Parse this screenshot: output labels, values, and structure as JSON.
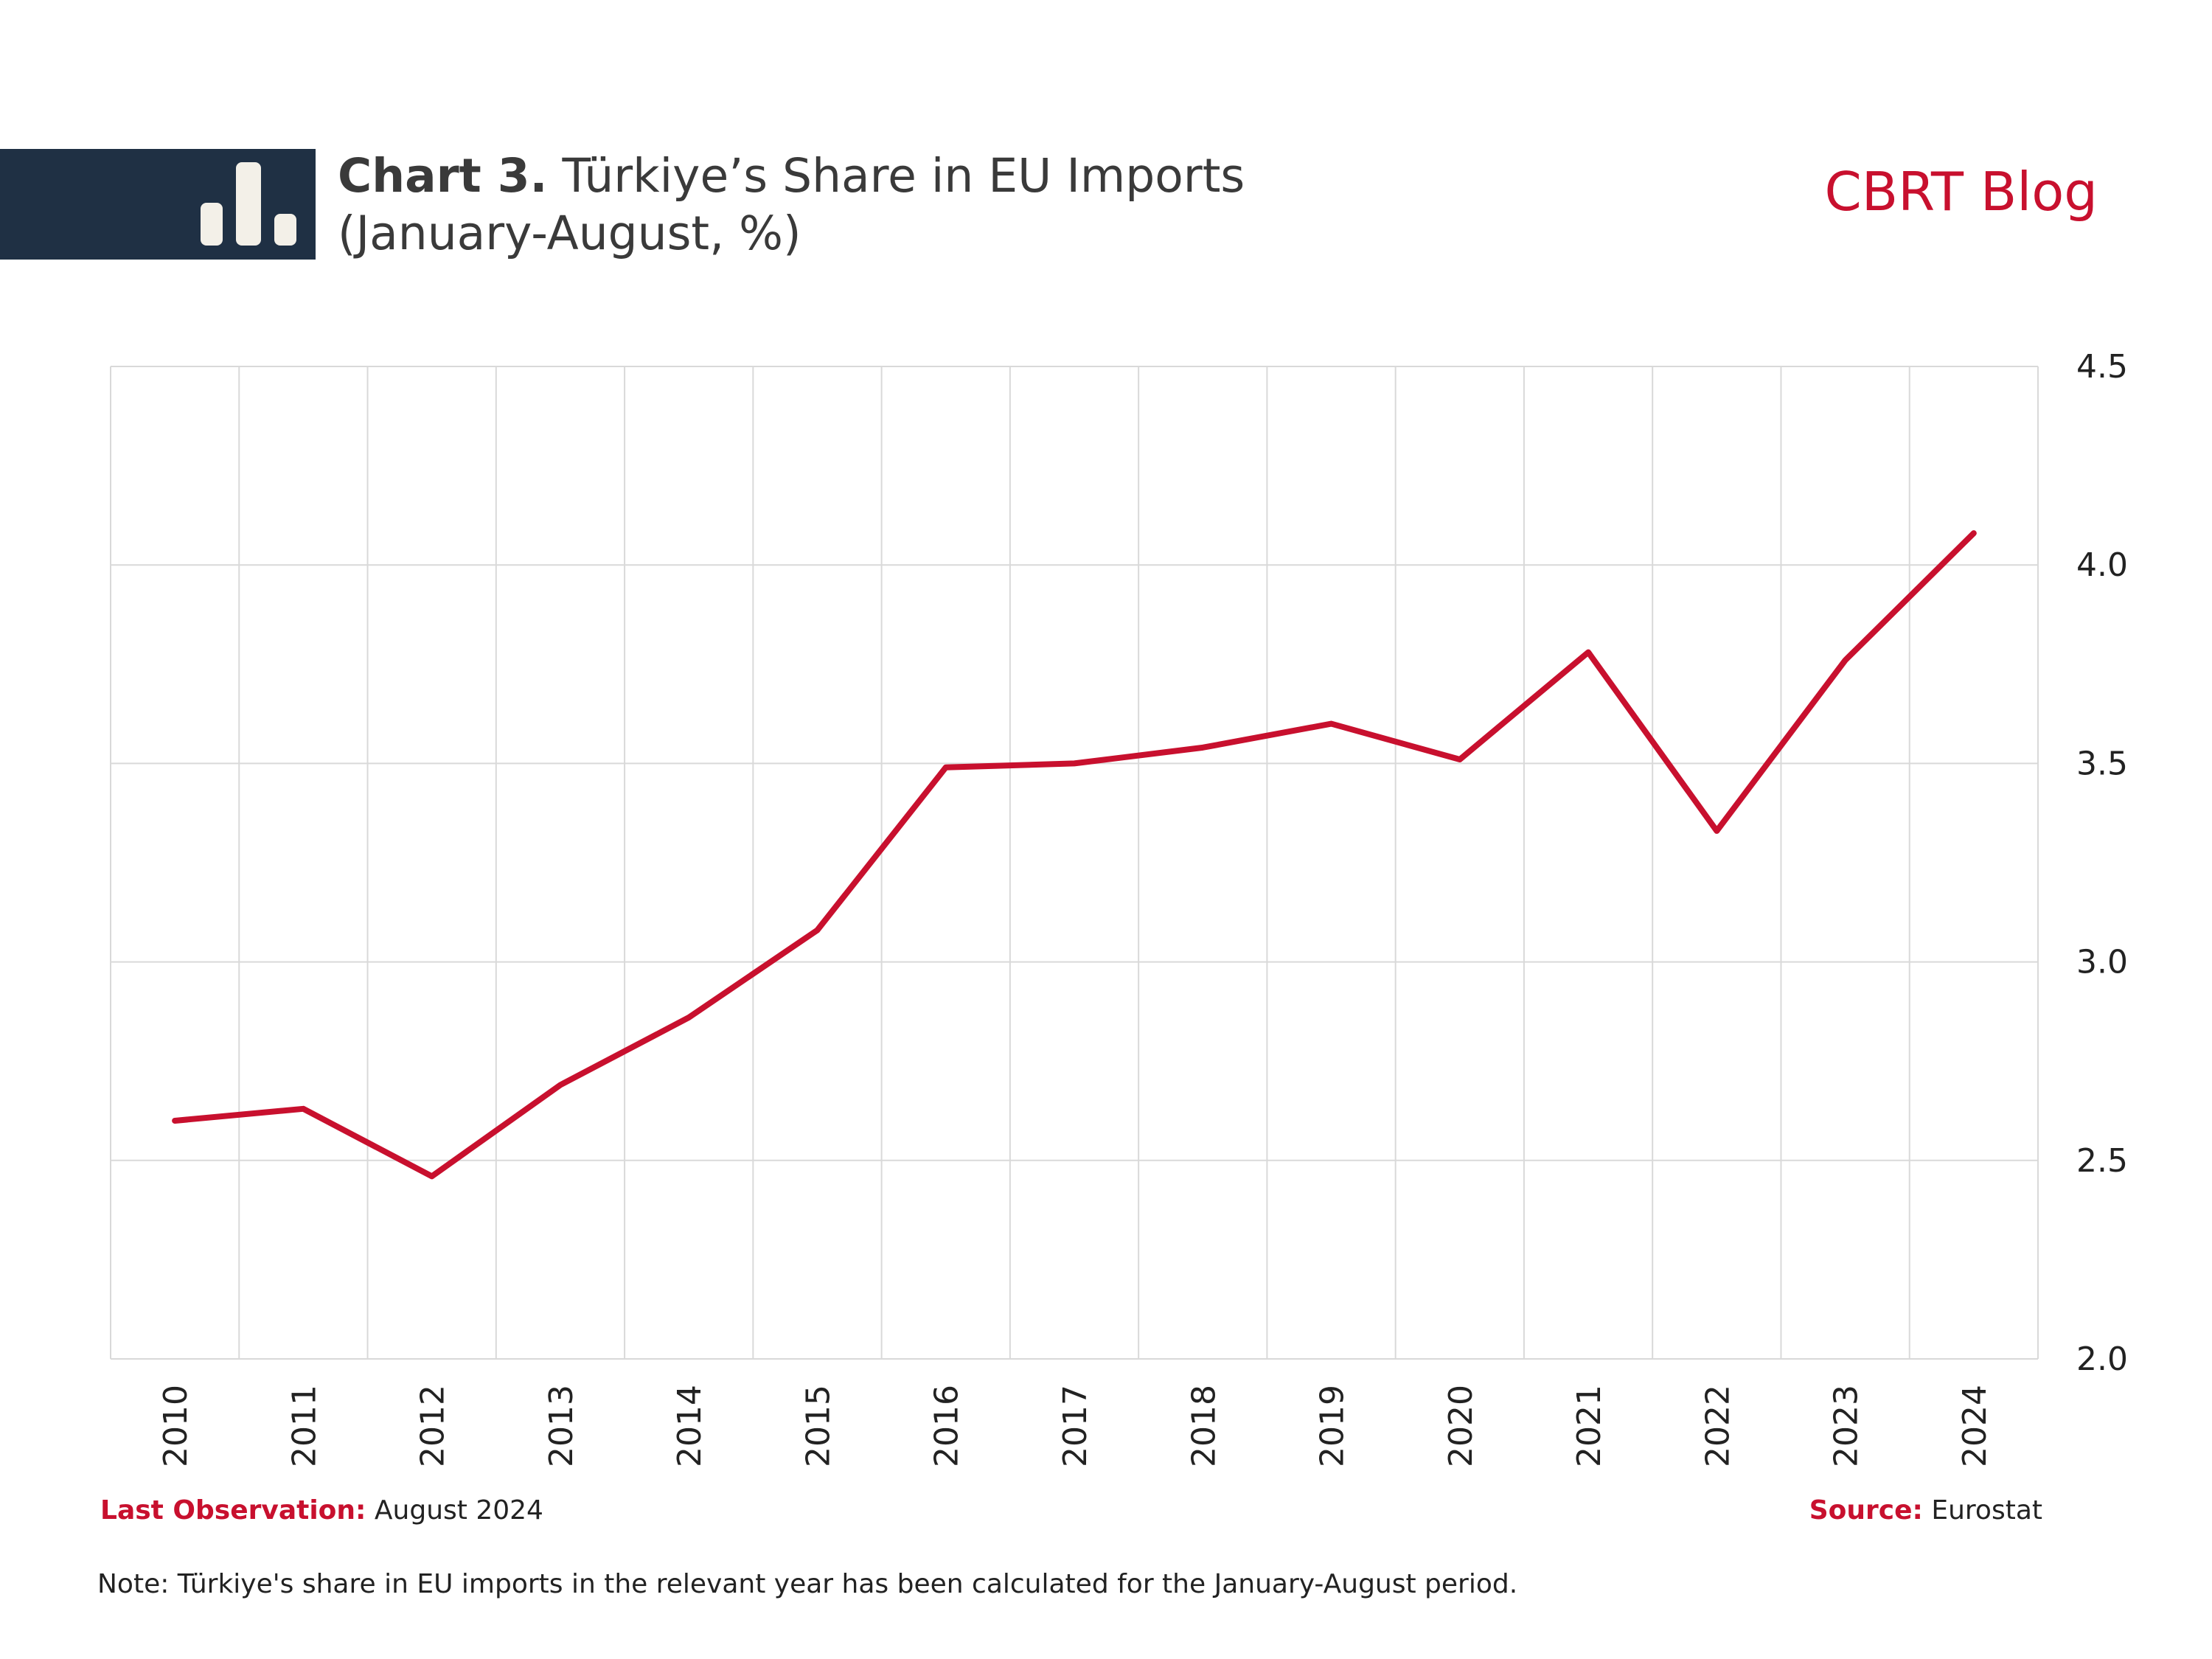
{
  "header": {
    "title_bold": "Chart 3.",
    "title_rest": "Türkiye’s Share in EU Imports",
    "subtitle": "(January-August, %)",
    "brand": "CBRT Blog"
  },
  "colors": {
    "accent": "#c8102e",
    "header_band": "#1f3044",
    "grid": "#d9d9d9"
  },
  "icons": {
    "logo": "bar-chart-icon"
  },
  "chart_data": {
    "type": "line",
    "categories": [
      "2010",
      "2011",
      "2012",
      "2013",
      "2014",
      "2015",
      "2016",
      "2017",
      "2018",
      "2019",
      "2020",
      "2021",
      "2022",
      "2023",
      "2024"
    ],
    "series": [
      {
        "values": [
          2.6,
          2.63,
          2.46,
          2.69,
          2.86,
          3.08,
          3.49,
          3.5,
          3.54,
          3.6,
          3.51,
          3.78,
          3.33,
          3.76,
          4.08
        ]
      }
    ],
    "ylim": [
      2.0,
      4.5
    ],
    "yticks": [
      "2.0",
      "2.5",
      "3.0",
      "3.5",
      "4.0",
      "4.5"
    ],
    "yaxis_side": "right",
    "xtick_rotation": "vertical",
    "grid": true,
    "xlabel": "",
    "ylabel": ""
  },
  "footer": {
    "last_obs_label": "Last Observation:",
    "last_obs_value": "August 2024",
    "source_label": "Source:",
    "source_value": "Eurostat",
    "note": "Note: Türkiye's share in EU imports in the relevant year has been calculated for the January-August period."
  }
}
